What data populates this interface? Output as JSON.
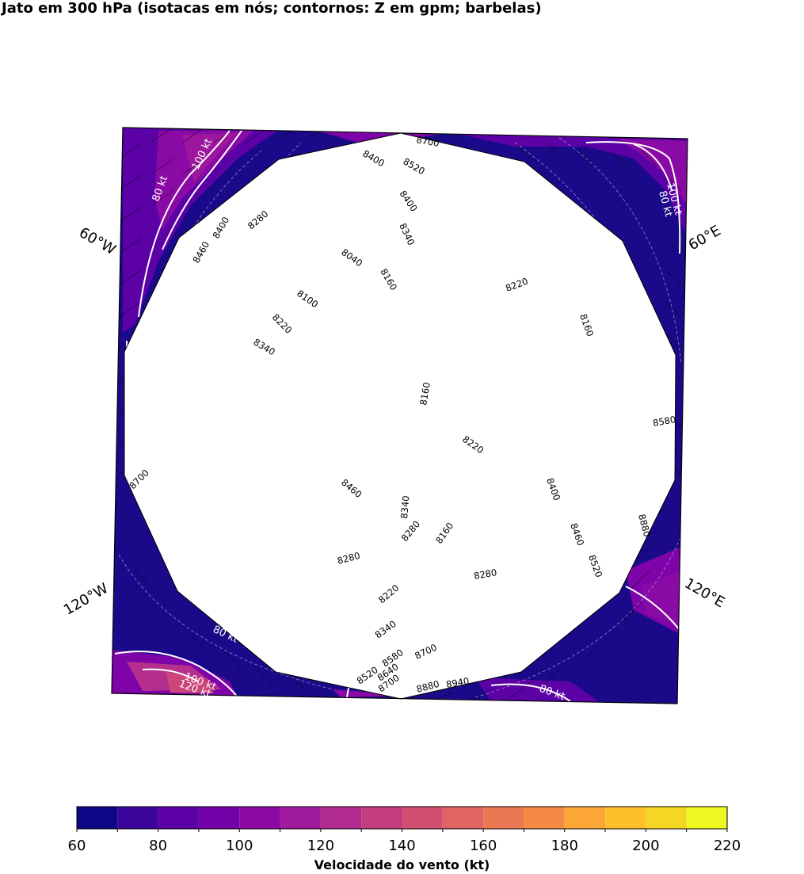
{
  "title": "Jato em 300 hPa (isotacas em nós; contornos: Z em gpm; barbelas)",
  "lon_labels": [
    "60°W",
    "60°E",
    "120°W",
    "120°E"
  ],
  "contour_labels": [
    "8400",
    "8520",
    "8400",
    "8340",
    "8280",
    "8400",
    "8460",
    "8040",
    "8160",
    "8100",
    "8220",
    "8340",
    "8220",
    "8160",
    "8160",
    "8580",
    "8220",
    "8700",
    "8460",
    "8400",
    "8340",
    "8280",
    "8160",
    "8880",
    "8460",
    "8280",
    "8520",
    "8280",
    "8220",
    "8340",
    "8700",
    "8580",
    "8520",
    "8640",
    "8700",
    "8880",
    "8940",
    "8700"
  ],
  "isotach_labels": [
    "100 kt",
    "80 kt",
    "100 kt",
    "80 kt",
    "80 kt",
    "80 kt",
    "100 kt",
    "120 kt"
  ],
  "colorbar": {
    "label": "Velocidade do vento (kt)",
    "ticks": [
      "60",
      "80",
      "100",
      "120",
      "140",
      "160",
      "180",
      "200",
      "220"
    ],
    "colors": [
      "#0d0887",
      "#3a049a",
      "#5c01a6",
      "#7e03a8",
      "#9c179e",
      "#b52f8c",
      "#cc4778",
      "#de5f65",
      "#ed7953",
      "#f89540",
      "#fdb42f",
      "#fbd524",
      "#f0f921",
      "#eff822",
      "#f2f51f",
      "#f5f31d"
    ]
  },
  "chart_data": {
    "type": "heatmap",
    "variable": "Velocidade do vento (kt)",
    "range": [
      60,
      220
    ],
    "bin_edges": [
      60,
      70,
      80,
      90,
      100,
      110,
      120,
      130,
      140,
      150,
      160,
      170,
      180,
      190,
      200,
      210,
      220
    ],
    "isotachs_kt": [
      80,
      100,
      120
    ],
    "height_contours_gpm": [
      8040,
      8100,
      8160,
      8220,
      8280,
      8340,
      8400,
      8460,
      8520,
      8580,
      8640,
      8700,
      8880,
      8940
    ]
  }
}
